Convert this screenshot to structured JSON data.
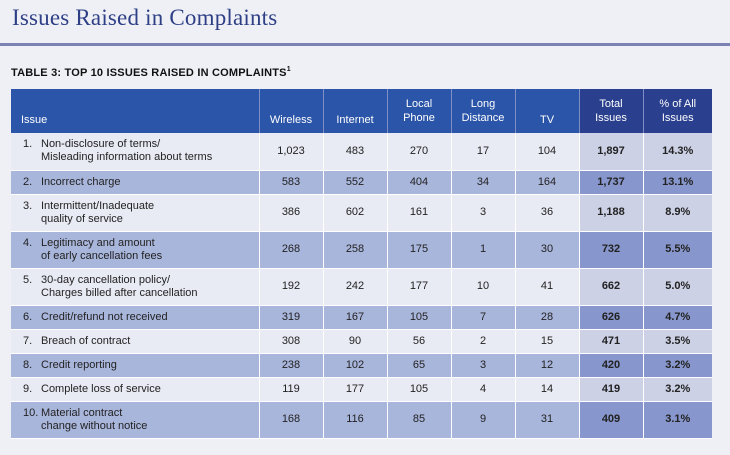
{
  "page_title": "Issues Raised in Complaints",
  "table_caption": "TABLE 3: TOP 10 ISSUES RAISED IN COMPLAINTS",
  "caption_footnote": "1",
  "headers": {
    "issue": "Issue",
    "wireless": "Wireless",
    "internet": "Internet",
    "local_phone": "Local\nPhone",
    "long_distance": "Long\nDistance",
    "tv": "TV",
    "total_issues": "Total\nIssues",
    "pct_all": "% of All\nIssues"
  },
  "rows": [
    {
      "num": "1.",
      "issue": "Non-disclosure of terms/\nMisleading information about terms",
      "wireless": "1,023",
      "internet": "483",
      "local_phone": "270",
      "long_distance": "17",
      "tv": "104",
      "total": "1,897",
      "pct": "14.3%"
    },
    {
      "num": "2.",
      "issue": "Incorrect charge",
      "wireless": "583",
      "internet": "552",
      "local_phone": "404",
      "long_distance": "34",
      "tv": "164",
      "total": "1,737",
      "pct": "13.1%"
    },
    {
      "num": "3.",
      "issue": "Intermittent/Inadequate\nquality of service",
      "wireless": "386",
      "internet": "602",
      "local_phone": "161",
      "long_distance": "3",
      "tv": "36",
      "total": "1,188",
      "pct": "8.9%"
    },
    {
      "num": "4.",
      "issue": "Legitimacy and amount\nof early cancellation fees",
      "wireless": "268",
      "internet": "258",
      "local_phone": "175",
      "long_distance": "1",
      "tv": "30",
      "total": "732",
      "pct": "5.5%"
    },
    {
      "num": "5.",
      "issue": "30-day cancellation policy/\nCharges billed after cancellation",
      "wireless": "192",
      "internet": "242",
      "local_phone": "177",
      "long_distance": "10",
      "tv": "41",
      "total": "662",
      "pct": "5.0%"
    },
    {
      "num": "6.",
      "issue": "Credit/refund not received",
      "wireless": "319",
      "internet": "167",
      "local_phone": "105",
      "long_distance": "7",
      "tv": "28",
      "total": "626",
      "pct": "4.7%"
    },
    {
      "num": "7.",
      "issue": "Breach of contract",
      "wireless": "308",
      "internet": "90",
      "local_phone": "56",
      "long_distance": "2",
      "tv": "15",
      "total": "471",
      "pct": "3.5%"
    },
    {
      "num": "8.",
      "issue": "Credit reporting",
      "wireless": "238",
      "internet": "102",
      "local_phone": "65",
      "long_distance": "3",
      "tv": "12",
      "total": "420",
      "pct": "3.2%"
    },
    {
      "num": "9.",
      "issue": "Complete loss of service",
      "wireless": "119",
      "internet": "177",
      "local_phone": "105",
      "long_distance": "4",
      "tv": "14",
      "total": "419",
      "pct": "3.2%"
    },
    {
      "num": "10.",
      "issue": "Material contract\nchange without notice",
      "wireless": "168",
      "internet": "116",
      "local_phone": "85",
      "long_distance": "9",
      "tv": "31",
      "total": "409",
      "pct": "3.1%"
    }
  ],
  "colors": {
    "title": "#2e3f86",
    "header_bg": "#2b55a8",
    "row_light": "#e9ebf4",
    "row_dark": "#a9b6dc",
    "total_light": "#ccd1e5",
    "total_dark": "#8796cc"
  }
}
